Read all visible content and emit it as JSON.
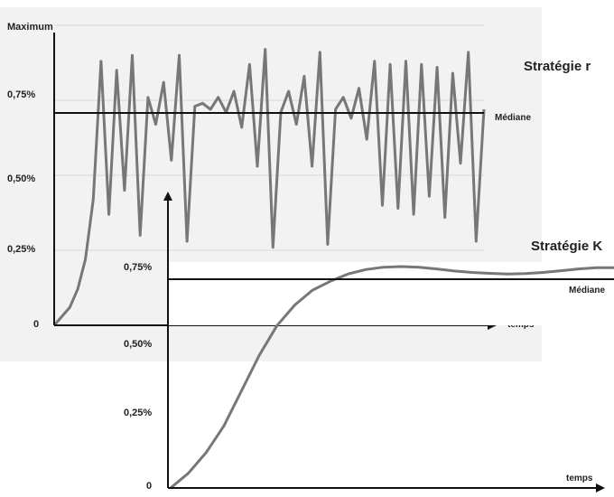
{
  "chart_data": [
    {
      "type": "line",
      "title": "Stratégie r",
      "xlabel": "temps",
      "ylabel": "",
      "yticks": [
        "Maximum",
        "0,75%",
        "0,50%",
        "0,25%",
        "0"
      ],
      "ytick_values": [
        1.0,
        0.75,
        0.5,
        0.25,
        0
      ],
      "ylim": [
        0,
        1.0
      ],
      "median": {
        "label": "Médiane",
        "value": 0.7
      },
      "grid": true,
      "series": [
        {
          "values": [
            0.0,
            0.03,
            0.06,
            0.12,
            0.22,
            0.42,
            0.88,
            0.37,
            0.85,
            0.45,
            0.9,
            0.3,
            0.76,
            0.67,
            0.81,
            0.55,
            0.9,
            0.28,
            0.73,
            0.74,
            0.72,
            0.76,
            0.71,
            0.78,
            0.66,
            0.87,
            0.53,
            0.92,
            0.26,
            0.71,
            0.78,
            0.67,
            0.83,
            0.53,
            0.91,
            0.27,
            0.72,
            0.76,
            0.69,
            0.79,
            0.62,
            0.88,
            0.4,
            0.87,
            0.39,
            0.88,
            0.37,
            0.87,
            0.43,
            0.86,
            0.36,
            0.84,
            0.54,
            0.91,
            0.28,
            0.72
          ]
        }
      ]
    },
    {
      "type": "line",
      "title": "Stratégie K",
      "xlabel": "temps",
      "ylabel": "",
      "yticks": [
        "0,75%",
        "0,50%",
        "0,25%",
        "0"
      ],
      "ytick_values": [
        0.75,
        0.5,
        0.25,
        0
      ],
      "ylim": [
        0,
        0.75
      ],
      "median": {
        "label": "Médiane",
        "value": 0.7
      },
      "grid": false,
      "series": [
        {
          "values": [
            0.0,
            0.05,
            0.12,
            0.21,
            0.33,
            0.45,
            0.55,
            0.62,
            0.67,
            0.7,
            0.725,
            0.74,
            0.748,
            0.75,
            0.748,
            0.742,
            0.735,
            0.73,
            0.727,
            0.725,
            0.726,
            0.73,
            0.736,
            0.742,
            0.746,
            0.746
          ]
        }
      ]
    }
  ]
}
